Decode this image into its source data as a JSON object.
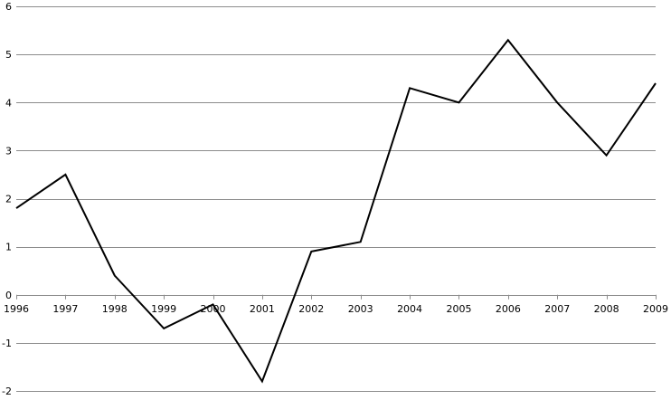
{
  "chart_data": {
    "type": "line",
    "title": "",
    "xlabel": "",
    "ylabel": "",
    "x": [
      1996,
      1997,
      1998,
      1999,
      2000,
      2001,
      2002,
      2003,
      2004,
      2005,
      2006,
      2007,
      2008,
      2009
    ],
    "x_tick_labels": [
      "1996",
      "1997",
      "1998",
      "1999",
      "2000",
      "2001",
      "2002",
      "2003",
      "2004",
      "2005",
      "2006",
      "2007",
      "2008",
      "2009"
    ],
    "series": [
      {
        "values": [
          1.8,
          2.5,
          0.4,
          -0.7,
          -0.2,
          -1.8,
          0.9,
          1.1,
          4.3,
          4.0,
          5.3,
          4.0,
          2.9,
          4.4
        ],
        "color": "#000000"
      }
    ],
    "ylim": [
      -2,
      6
    ],
    "y_ticks": [
      -2,
      -1,
      0,
      1,
      2,
      3,
      4,
      5,
      6
    ],
    "y_tick_labels": [
      "-2",
      "-1",
      "0",
      "1",
      "2",
      "3",
      "4",
      "5",
      "6"
    ],
    "grid": true,
    "legend": "none",
    "x_axis_at_zero": true
  }
}
